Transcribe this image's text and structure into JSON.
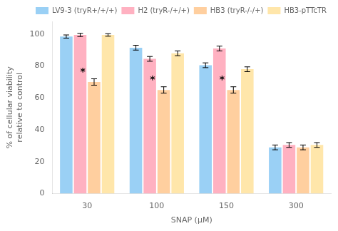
{
  "chart_data": {
    "type": "bar",
    "xlabel": "SNAP (μM)",
    "ylabel": "% of cellular viability\nrelative to control",
    "categories": [
      "30",
      "100",
      "150",
      "300"
    ],
    "series": [
      {
        "name": "LV9-3 (tryR+/+/+)",
        "values": [
          98.5,
          91.5,
          80.5,
          29.0
        ],
        "errors": [
          1.0,
          1.5,
          1.5,
          1.5
        ]
      },
      {
        "name": "H2 (tryR-/+/+)",
        "values": [
          99.5,
          84.5,
          91.0,
          30.5
        ],
        "errors": [
          1.0,
          1.5,
          1.5,
          1.5
        ]
      },
      {
        "name": "HB3 (tryR-/-/+)",
        "values": [
          70.0,
          65.0,
          65.0,
          29.0
        ],
        "errors": [
          2.0,
          2.0,
          2.0,
          1.5
        ]
      },
      {
        "name": "HB3-pTTcTR",
        "values": [
          99.5,
          88.0,
          78.0,
          30.5
        ],
        "errors": [
          0.8,
          1.5,
          1.5,
          1.5
        ]
      }
    ],
    "annotations": [
      {
        "text": "*",
        "series": "HB3 (tryR-/-/+)",
        "category": "30"
      },
      {
        "text": "*",
        "series": "HB3 (tryR-/-/+)",
        "category": "100"
      },
      {
        "text": "*",
        "series": "HB3 (tryR-/-/+)",
        "category": "150"
      }
    ],
    "ylim": [
      0,
      108
    ],
    "yticks": [
      0,
      20,
      40,
      60,
      80,
      100
    ],
    "grid": false,
    "legend": "upper right"
  }
}
